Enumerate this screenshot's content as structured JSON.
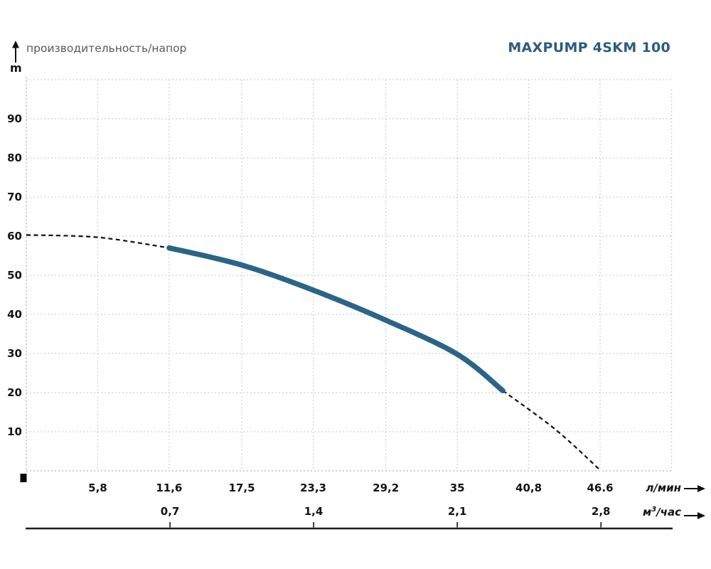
{
  "header": {
    "subtitle": "производительность/напор",
    "title": "MAXPUMP 4SKM 100",
    "y_unit": "m"
  },
  "units": {
    "lmin": "л/мин",
    "m3h_base": "м",
    "m3h_sup": "3",
    "m3h_rest": "/час"
  },
  "colors": {
    "title": "#2a5d7e",
    "curve_solid": "#2a6488",
    "curve_dashed": "#101010",
    "grid": "#cbcbcb",
    "axis_dotted": "#ababab",
    "baseline": "#1c1c1c"
  },
  "chart_data": {
    "type": "line",
    "title": "MAXPUMP 4SKM 100",
    "subtitle": "производительность/напор",
    "grid": "dotted",
    "legend": false,
    "y_axis": {
      "unit": "m",
      "tick_labels": [
        90,
        80,
        70,
        60,
        50,
        40,
        30,
        20,
        10
      ],
      "range": [
        0,
        100
      ],
      "grid_step": 10
    },
    "x_axis_lmin": {
      "unit": "л/мин",
      "tick_labels": [
        "5,8",
        "11,6",
        "17,5",
        "23,3",
        "29,2",
        "35",
        "40,8",
        "46.6"
      ],
      "tick_values": [
        5.8,
        11.6,
        17.5,
        23.3,
        29.2,
        35,
        40.8,
        46.6
      ],
      "range": [
        0,
        52.4
      ]
    },
    "x_axis_m3h": {
      "unit": "м3/час",
      "tick_labels": [
        "0,7",
        "1,4",
        "2,1",
        "2,8"
      ],
      "tick_values_lmin": [
        11.67,
        23.33,
        35.0,
        46.67
      ]
    },
    "series": [
      {
        "name": "MAXPUMP 4SKM 100",
        "color": "#2a6488",
        "solid_range_lmin": [
          11.6,
          38.7
        ],
        "points": [
          {
            "q_lmin": 0,
            "h_m": 60.3
          },
          {
            "q_lmin": 5.8,
            "h_m": 59.7
          },
          {
            "q_lmin": 11.6,
            "h_m": 57.0
          },
          {
            "q_lmin": 17.5,
            "h_m": 52.6
          },
          {
            "q_lmin": 23.3,
            "h_m": 46.2
          },
          {
            "q_lmin": 29.2,
            "h_m": 38.5
          },
          {
            "q_lmin": 35.0,
            "h_m": 29.8
          },
          {
            "q_lmin": 38.7,
            "h_m": 20.5
          },
          {
            "q_lmin": 43.0,
            "h_m": 10.5
          },
          {
            "q_lmin": 46.6,
            "h_m": 0.2
          }
        ]
      }
    ]
  }
}
